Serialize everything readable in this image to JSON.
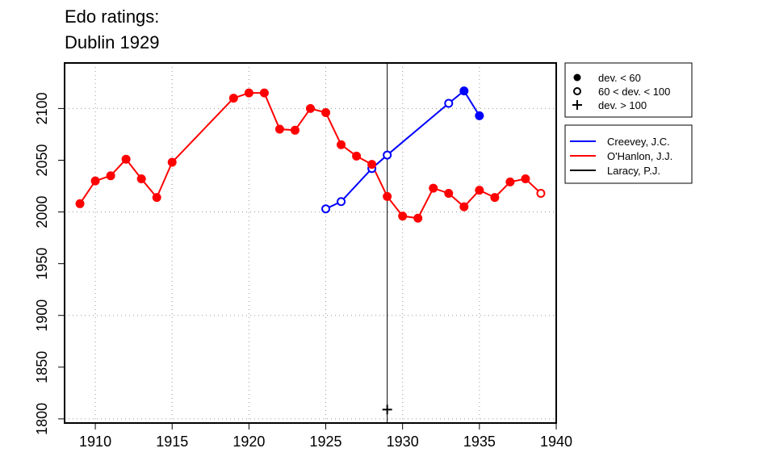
{
  "title_lines": [
    "Edo ratings:",
    "Dublin 1929"
  ],
  "chart_data": {
    "type": "line",
    "title": "Edo ratings: Dublin 1929",
    "xlim": [
      1908,
      1940
    ],
    "ylim": [
      1796,
      2144
    ],
    "x_ticks": [
      1910,
      1915,
      1920,
      1925,
      1930,
      1935,
      1940
    ],
    "y_ticks": [
      1800,
      1850,
      1900,
      1950,
      2000,
      2050,
      2100
    ],
    "grid": "dotted",
    "reference_line_x": 1929,
    "deviation_legend": [
      {
        "symbol": "filled-circle",
        "label": "dev. < 60"
      },
      {
        "symbol": "open-circle",
        "label": "60 < dev. < 100"
      },
      {
        "symbol": "plus",
        "label": "dev. > 100"
      }
    ],
    "series": [
      {
        "name": "Creevey, J.C.",
        "color": "#0000ff",
        "points": [
          {
            "x": 1925,
            "y": 2003,
            "dev": "mid"
          },
          {
            "x": 1926,
            "y": 2010,
            "dev": "mid"
          },
          {
            "x": 1928,
            "y": 2042,
            "dev": "mid"
          },
          {
            "x": 1929,
            "y": 2055,
            "dev": "mid"
          },
          {
            "x": 1933,
            "y": 2105,
            "dev": "mid"
          },
          {
            "x": 1934,
            "y": 2117,
            "dev": "low"
          },
          {
            "x": 1935,
            "y": 2093,
            "dev": "low"
          }
        ]
      },
      {
        "name": "O'Hanlon, J.J.",
        "color": "#ff0000",
        "points": [
          {
            "x": 1909,
            "y": 2008,
            "dev": "low"
          },
          {
            "x": 1910,
            "y": 2030,
            "dev": "low"
          },
          {
            "x": 1911,
            "y": 2035,
            "dev": "low"
          },
          {
            "x": 1912,
            "y": 2051,
            "dev": "low"
          },
          {
            "x": 1913,
            "y": 2032,
            "dev": "low"
          },
          {
            "x": 1914,
            "y": 2014,
            "dev": "low"
          },
          {
            "x": 1915,
            "y": 2048,
            "dev": "low"
          },
          {
            "x": 1919,
            "y": 2110,
            "dev": "low"
          },
          {
            "x": 1920,
            "y": 2115,
            "dev": "low"
          },
          {
            "x": 1921,
            "y": 2115,
            "dev": "low"
          },
          {
            "x": 1922,
            "y": 2080,
            "dev": "low"
          },
          {
            "x": 1923,
            "y": 2079,
            "dev": "low"
          },
          {
            "x": 1924,
            "y": 2100,
            "dev": "low"
          },
          {
            "x": 1925,
            "y": 2096,
            "dev": "low"
          },
          {
            "x": 1926,
            "y": 2065,
            "dev": "low"
          },
          {
            "x": 1927,
            "y": 2054,
            "dev": "low"
          },
          {
            "x": 1928,
            "y": 2046,
            "dev": "low"
          },
          {
            "x": 1929,
            "y": 2015,
            "dev": "low"
          },
          {
            "x": 1930,
            "y": 1996,
            "dev": "low"
          },
          {
            "x": 1931,
            "y": 1994,
            "dev": "low"
          },
          {
            "x": 1932,
            "y": 2023,
            "dev": "low"
          },
          {
            "x": 1933,
            "y": 2018,
            "dev": "low"
          },
          {
            "x": 1934,
            "y": 2005,
            "dev": "low"
          },
          {
            "x": 1935,
            "y": 2021,
            "dev": "low"
          },
          {
            "x": 1936,
            "y": 2014,
            "dev": "low"
          },
          {
            "x": 1937,
            "y": 2029,
            "dev": "low"
          },
          {
            "x": 1938,
            "y": 2032,
            "dev": "low"
          },
          {
            "x": 1939,
            "y": 2018,
            "dev": "mid"
          }
        ]
      },
      {
        "name": "Laracy, P.J.",
        "color": "#000000",
        "points": [
          {
            "x": 1929,
            "y": 1809,
            "dev": "high"
          }
        ]
      }
    ]
  }
}
